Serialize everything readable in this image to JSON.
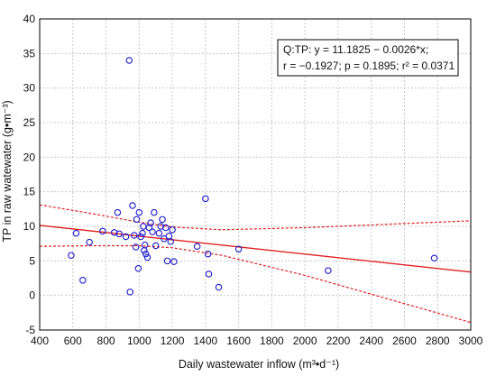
{
  "chart_data": {
    "type": "scatter",
    "xlabel": "Daily wastewater inflow (m³•d⁻¹)",
    "ylabel": "TP in raw watewater (g•m⁻³)",
    "xlim": [
      400,
      3000
    ],
    "ylim": [
      -5,
      40
    ],
    "x_ticks": [
      "400",
      "600",
      "800",
      "1000",
      "1200",
      "1400",
      "1600",
      "1800",
      "2000",
      "2200",
      "2400",
      "2600",
      "2800",
      "3000"
    ],
    "y_ticks": [
      "-5",
      "0",
      "5",
      "10",
      "15",
      "20",
      "25",
      "30",
      "35",
      "40"
    ],
    "grid": true,
    "annotation": {
      "line1": "Q:TP:   y = 11.1825 − 0.0026*x;",
      "line2": "r = −0.1927; p = 0.1895; r² = 0.0371"
    },
    "regression": {
      "intercept": 11.1825,
      "slope": -0.0026
    },
    "confidence_band": {
      "x": [
        400,
        700,
        1000,
        1200,
        1500,
        2000,
        2500,
        3000
      ],
      "upper": [
        13.1,
        11.9,
        10.6,
        9.9,
        9.5,
        9.8,
        10.3,
        10.8
      ],
      "lower": [
        7.1,
        7.2,
        7.2,
        6.9,
        5.8,
        2.9,
        -0.5,
        -3.9
      ]
    },
    "colors": {
      "points": "#1a1acc",
      "fit_line": "#e02020",
      "band": "#e02020",
      "grid": "#c8c8c8"
    },
    "points": [
      {
        "x": 590,
        "y": 5.8
      },
      {
        "x": 620,
        "y": 9.0
      },
      {
        "x": 660,
        "y": 2.2
      },
      {
        "x": 700,
        "y": 7.7
      },
      {
        "x": 780,
        "y": 9.3
      },
      {
        "x": 850,
        "y": 9.1
      },
      {
        "x": 870,
        "y": 12.0
      },
      {
        "x": 880,
        "y": 8.9
      },
      {
        "x": 920,
        "y": 8.5
      },
      {
        "x": 940,
        "y": 34.0
      },
      {
        "x": 945,
        "y": 0.5
      },
      {
        "x": 960,
        "y": 13.0
      },
      {
        "x": 970,
        "y": 8.7
      },
      {
        "x": 980,
        "y": 7.0
      },
      {
        "x": 985,
        "y": 11.0
      },
      {
        "x": 995,
        "y": 3.9
      },
      {
        "x": 1000,
        "y": 12.0
      },
      {
        "x": 1010,
        "y": 8.5
      },
      {
        "x": 1020,
        "y": 9.0
      },
      {
        "x": 1025,
        "y": 10.0
      },
      {
        "x": 1030,
        "y": 6.5
      },
      {
        "x": 1035,
        "y": 7.3
      },
      {
        "x": 1040,
        "y": 6.0
      },
      {
        "x": 1050,
        "y": 5.5
      },
      {
        "x": 1060,
        "y": 9.8
      },
      {
        "x": 1070,
        "y": 10.5
      },
      {
        "x": 1080,
        "y": 9.2
      },
      {
        "x": 1090,
        "y": 12.0
      },
      {
        "x": 1100,
        "y": 7.2
      },
      {
        "x": 1120,
        "y": 9.0
      },
      {
        "x": 1130,
        "y": 10.0
      },
      {
        "x": 1140,
        "y": 11.0
      },
      {
        "x": 1150,
        "y": 8.2
      },
      {
        "x": 1160,
        "y": 9.8
      },
      {
        "x": 1170,
        "y": 5.0
      },
      {
        "x": 1180,
        "y": 8.6
      },
      {
        "x": 1190,
        "y": 7.8
      },
      {
        "x": 1200,
        "y": 9.5
      },
      {
        "x": 1210,
        "y": 4.9
      },
      {
        "x": 1350,
        "y": 7.1
      },
      {
        "x": 1400,
        "y": 14.0
      },
      {
        "x": 1415,
        "y": 6.0
      },
      {
        "x": 1420,
        "y": 3.1
      },
      {
        "x": 1480,
        "y": 1.2
      },
      {
        "x": 1600,
        "y": 6.7
      },
      {
        "x": 2140,
        "y": 3.6
      },
      {
        "x": 2780,
        "y": 5.4
      }
    ]
  }
}
